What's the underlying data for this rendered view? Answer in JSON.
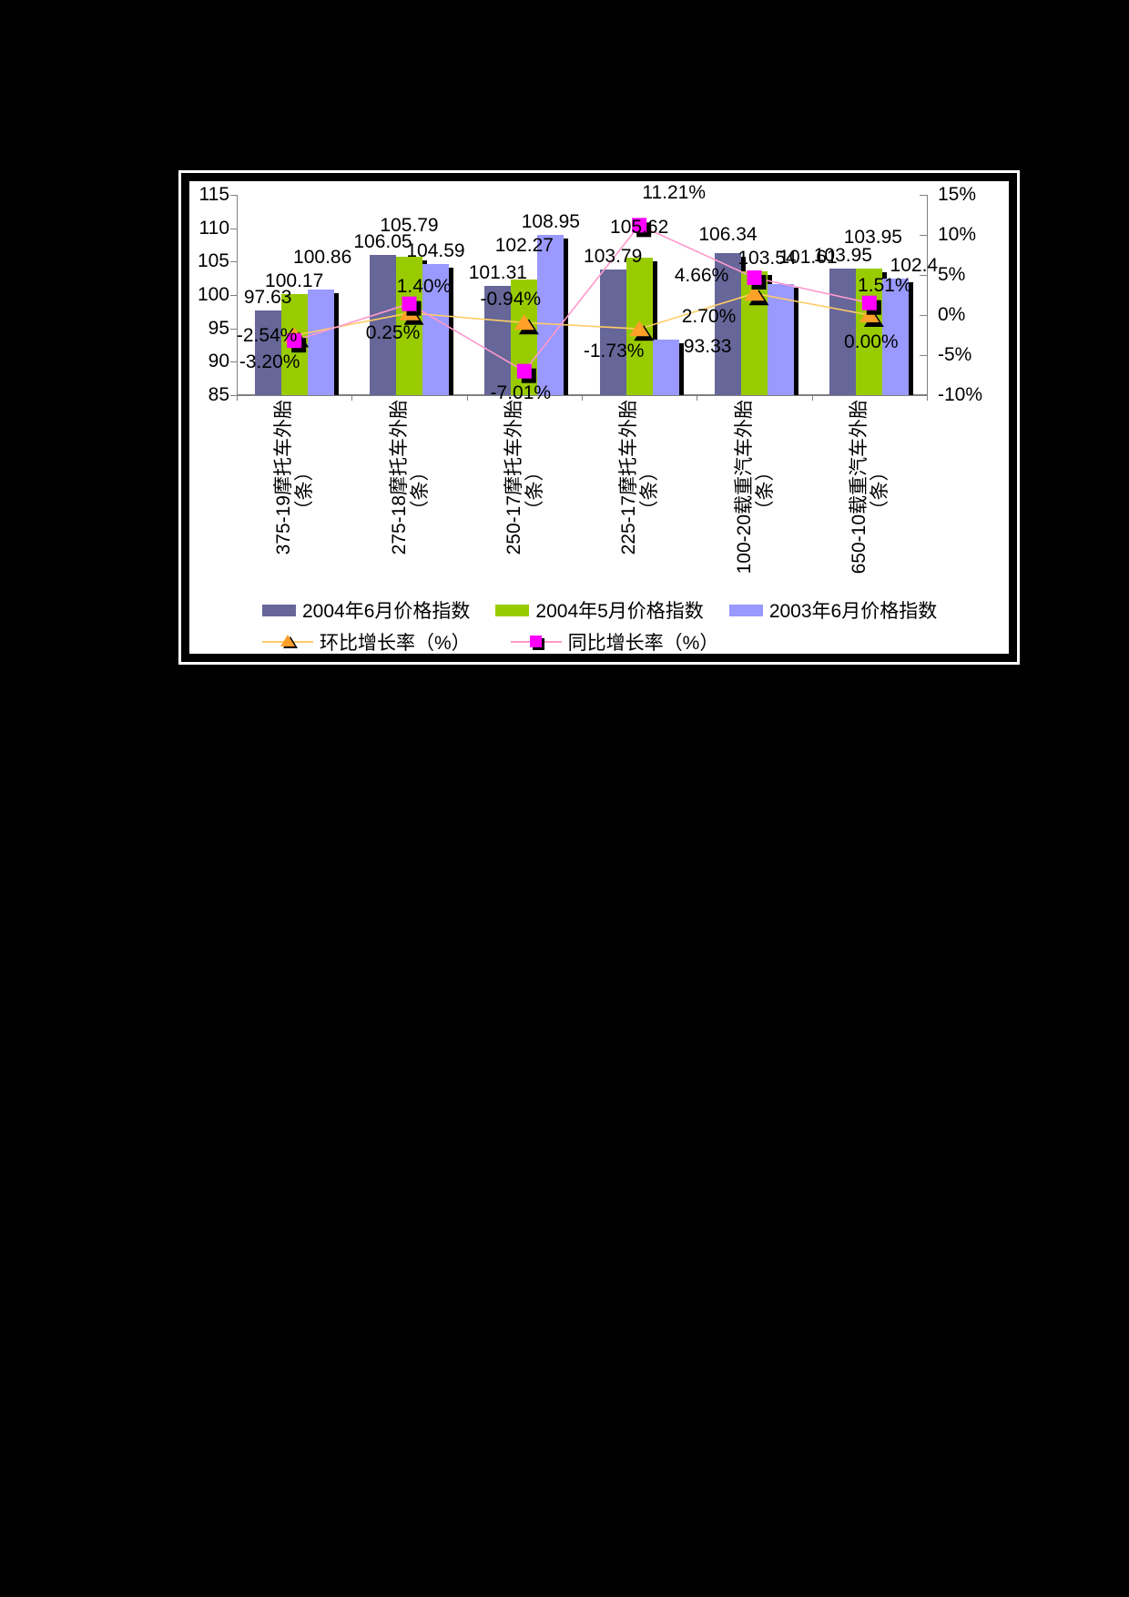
{
  "chart_data": {
    "type": "bar+line",
    "title": "",
    "categories": [
      "375-19摩托车外胎（条）",
      "275-18摩托车外胎（条）",
      "250-17摩托车外胎（条）",
      "225-17摩托车外胎（条）",
      "100-20载重汽车外胎（条）",
      "650-10载重汽车外胎（条）"
    ],
    "bar_series": [
      {
        "name": "2004年6月价格指数",
        "color": "#666699",
        "values": [
          97.63,
          106.05,
          101.31,
          103.79,
          106.34,
          103.95
        ],
        "labels": [
          "97.63",
          "106.05",
          "101.31",
          "103.79",
          "106.34",
          "103.95"
        ]
      },
      {
        "name": "2004年5月价格指数",
        "color": "#99CC00",
        "values": [
          100.17,
          105.79,
          102.27,
          105.62,
          103.54,
          103.95
        ],
        "labels": [
          "100.17",
          "105.79",
          "102.27",
          "105.62",
          "103.54",
          "103.95"
        ]
      },
      {
        "name": "2003年6月价格指数",
        "color": "#9999FF",
        "values": [
          100.86,
          104.59,
          108.95,
          93.33,
          101.61,
          102.4
        ],
        "labels": [
          "100.86",
          "104.59",
          "108.95",
          "93.33",
          "101.61",
          "102.4"
        ]
      }
    ],
    "line_series": [
      {
        "name": "环比增长率（%）",
        "marker": "triangle",
        "marker_color": "#FFA028",
        "line_color": "#FFCC66",
        "values": [
          -2.54,
          0.25,
          -0.94,
          -1.73,
          2.7,
          0.0
        ],
        "labels": [
          "-2.54%",
          "0.25%",
          "-0.94%",
          "-1.73%",
          "2.70%",
          "0.00%"
        ]
      },
      {
        "name": "同比增长率（%）",
        "marker": "square",
        "marker_color": "#FF00FF",
        "line_color": "#FF99CC",
        "values": [
          -3.2,
          1.4,
          -7.01,
          11.21,
          4.66,
          1.51
        ],
        "labels": [
          "-3.20%",
          "1.40%",
          "-7.01%",
          "11.21%",
          "4.66%",
          "1.51%"
        ]
      }
    ],
    "left_axis": {
      "min": 85,
      "max": 115,
      "step": 5,
      "tick_labels": [
        "115",
        "110",
        "105",
        "100",
        "95",
        "90",
        "85"
      ]
    },
    "right_axis": {
      "min": -10,
      "max": 15,
      "step": 5,
      "tick_labels": [
        "15%",
        "10%",
        "5%",
        "0%",
        "-5%",
        "-10%"
      ]
    },
    "grid": "off",
    "legend_position": "bottom",
    "layout_hints": {
      "bar_label_offsets": [
        [
          [
            0,
            0
          ],
          [
            0,
            0
          ],
          [
            0,
            0
          ],
          [
            0,
            0
          ],
          [
            0,
            -6
          ],
          [
            0,
            0
          ]
        ],
        [
          [
            0,
            0
          ],
          [
            0,
            -20
          ],
          [
            0,
            -23
          ],
          [
            0,
            -19
          ],
          [
            14,
            0
          ],
          [
            4,
            -20
          ]
        ],
        [
          [
            2,
            -21
          ],
          [
            0,
            0
          ],
          [
            0,
            0
          ],
          [
            46,
            22
          ],
          [
            30,
            -15
          ],
          [
            20,
            0
          ]
        ]
      ],
      "line_label_offsets": [
        [
          [
            -30,
            1
          ],
          [
            -18,
            22
          ],
          [
            -15,
            -25
          ],
          [
            -28,
            25
          ],
          [
            -50,
            26
          ],
          [
            2,
            30
          ]
        ],
        [
          [
            -27,
            24
          ],
          [
            16,
            -19
          ],
          [
            -4,
            24
          ],
          [
            38,
            -35
          ],
          [
            -58,
            -2
          ],
          [
            17,
            -19
          ]
        ]
      ]
    }
  },
  "colors": {
    "page_bg": "#000000",
    "chart_bg": "#FFFFFF",
    "axis": "#808080",
    "shadow": "#000000"
  }
}
